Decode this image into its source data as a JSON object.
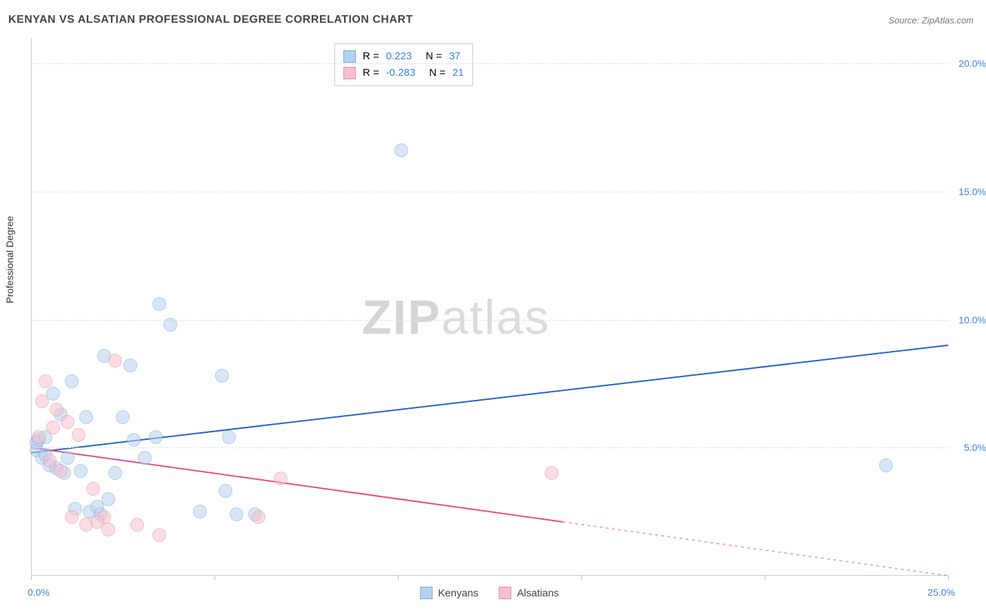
{
  "title": "KENYAN VS ALSATIAN PROFESSIONAL DEGREE CORRELATION CHART",
  "source": "Source: ZipAtlas.com",
  "ylabel": "Professional Degree",
  "watermark_zip": "ZIP",
  "watermark_atlas": "atlas",
  "chart": {
    "type": "scatter",
    "xlim": [
      0,
      25
    ],
    "ylim": [
      0,
      21
    ],
    "x_origin_label": "0.0%",
    "x_max_label": "25.0%",
    "y_ticks": [
      {
        "v": 5,
        "label": "5.0%"
      },
      {
        "v": 10,
        "label": "10.0%"
      },
      {
        "v": 15,
        "label": "15.0%"
      },
      {
        "v": 20,
        "label": "20.0%"
      }
    ],
    "x_tick_positions": [
      0,
      5,
      10,
      15,
      20,
      25
    ],
    "background_color": "#ffffff",
    "grid_color": "#dddddd",
    "marker_radius": 9,
    "marker_stroke_width": 1.2,
    "series": [
      {
        "name": "Kenyans",
        "fill": "#b7d1f0",
        "stroke": "#6fa8e0",
        "fill_opacity": 0.55,
        "R": "0.223",
        "N": "37",
        "trend": {
          "x1": 0,
          "y1": 4.8,
          "x2": 25,
          "y2": 9.0,
          "solid_to_x": 25,
          "color": "#2060d0",
          "width": 2
        },
        "points": [
          [
            0.15,
            5.2
          ],
          [
            0.15,
            4.9
          ],
          [
            0.2,
            5.3
          ],
          [
            0.3,
            4.6
          ],
          [
            0.4,
            4.7
          ],
          [
            0.4,
            5.4
          ],
          [
            0.5,
            4.3
          ],
          [
            0.6,
            7.1
          ],
          [
            0.7,
            4.2
          ],
          [
            0.8,
            6.3
          ],
          [
            0.9,
            4.0
          ],
          [
            1.0,
            4.6
          ],
          [
            1.1,
            7.6
          ],
          [
            1.2,
            2.6
          ],
          [
            1.35,
            4.1
          ],
          [
            1.5,
            6.2
          ],
          [
            1.6,
            2.5
          ],
          [
            1.8,
            2.7
          ],
          [
            2.0,
            8.6
          ],
          [
            2.1,
            3.0
          ],
          [
            2.3,
            4.0
          ],
          [
            2.5,
            6.2
          ],
          [
            2.7,
            8.2
          ],
          [
            2.8,
            5.3
          ],
          [
            3.1,
            4.6
          ],
          [
            3.4,
            5.4
          ],
          [
            3.5,
            10.6
          ],
          [
            3.8,
            9.8
          ],
          [
            4.6,
            2.5
          ],
          [
            5.2,
            7.8
          ],
          [
            5.3,
            3.3
          ],
          [
            5.4,
            5.4
          ],
          [
            5.6,
            2.4
          ],
          [
            6.1,
            2.4
          ],
          [
            10.1,
            16.6
          ],
          [
            23.3,
            4.3
          ],
          [
            1.9,
            2.4
          ]
        ]
      },
      {
        "name": "Alsatians",
        "fill": "#f6c1cd",
        "stroke": "#e98aa1",
        "fill_opacity": 0.55,
        "R": "-0.283",
        "N": "21",
        "trend": {
          "x1": 0,
          "y1": 5.0,
          "x2": 25,
          "y2": 0.0,
          "solid_to_x": 14.5,
          "color": "#e84c78",
          "width": 2
        },
        "points": [
          [
            0.2,
            5.4
          ],
          [
            0.3,
            6.8
          ],
          [
            0.4,
            7.6
          ],
          [
            0.5,
            4.5
          ],
          [
            0.6,
            5.8
          ],
          [
            0.7,
            6.5
          ],
          [
            0.8,
            4.1
          ],
          [
            1.0,
            6.0
          ],
          [
            1.1,
            2.3
          ],
          [
            1.3,
            5.5
          ],
          [
            1.5,
            2.0
          ],
          [
            1.7,
            3.4
          ],
          [
            2.0,
            2.3
          ],
          [
            2.1,
            1.8
          ],
          [
            2.3,
            8.4
          ],
          [
            2.9,
            2.0
          ],
          [
            3.5,
            1.6
          ],
          [
            6.2,
            2.3
          ],
          [
            6.8,
            3.8
          ],
          [
            14.2,
            4.0
          ],
          [
            1.8,
            2.1
          ]
        ]
      }
    ],
    "legend_stats": {
      "r_label": "R =",
      "n_label": "N ="
    }
  }
}
